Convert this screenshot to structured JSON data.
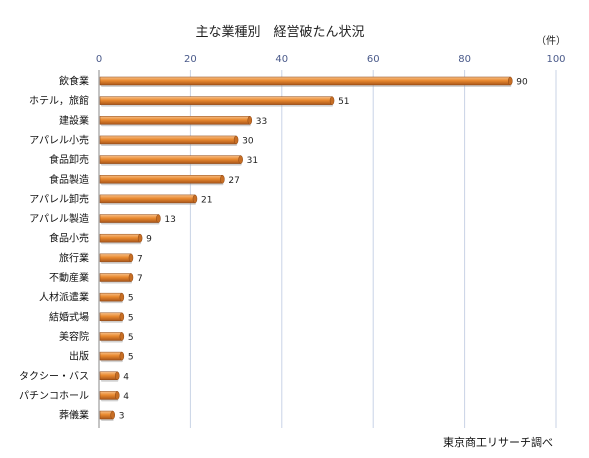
{
  "chart_data": {
    "type": "bar",
    "orientation": "horizontal",
    "title": "主な業種別　経営破たん状況",
    "unit_label": "（件）",
    "source": "東京商工リサーチ調べ",
    "categories": [
      "飲食業",
      "ホテル，旅館",
      "建設業",
      "アパレル小売",
      "食品卸売",
      "食品製造",
      "アパレル卸売",
      "アパレル製造",
      "食品小売",
      "旅行業",
      "不動産業",
      "人材派遣業",
      "結婚式場",
      "美容院",
      "出版",
      "タクシー・バス",
      "パチンコホール",
      "葬儀業"
    ],
    "values": [
      90,
      51,
      33,
      30,
      31,
      27,
      21,
      13,
      9,
      7,
      7,
      5,
      5,
      5,
      5,
      4,
      4,
      3
    ],
    "xlim": [
      0,
      100
    ],
    "xticks": [
      0,
      20,
      40,
      60,
      80,
      100
    ],
    "grid": true,
    "bar_color": "#e9892f"
  }
}
